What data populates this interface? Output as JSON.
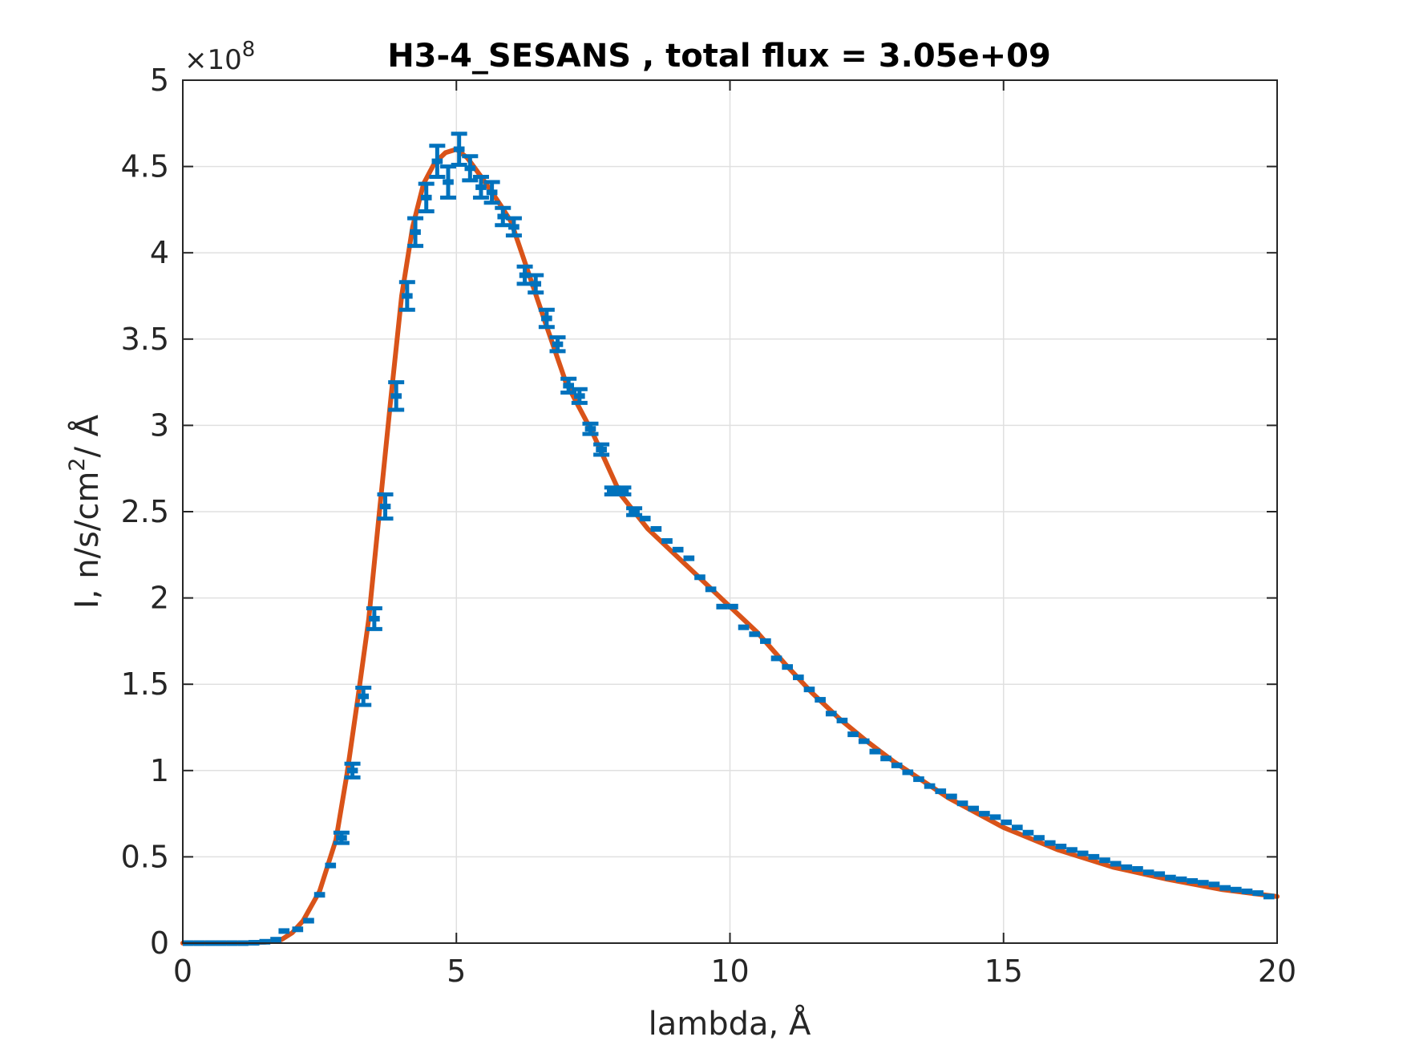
{
  "chart_data": {
    "type": "line",
    "title": "H3-4_SESANS , total flux =  3.05e+09",
    "xlabel": "lambda,  Å",
    "ylabel": {
      "prefix": "I, n/s/cm",
      "sup": "2",
      "suffix": "/ Å"
    },
    "y_exponent": {
      "base": "×10",
      "power": "8"
    },
    "xlim": [
      0,
      20
    ],
    "ylim": [
      0,
      500000000
    ],
    "y_display_scale": 100000000,
    "grid": true,
    "xticks": [
      0,
      5,
      10,
      15,
      20
    ],
    "xtick_labels": [
      "0",
      "5",
      "10",
      "15",
      "20"
    ],
    "yticks": [
      0,
      0.5,
      1,
      1.5,
      2,
      2.5,
      3,
      3.5,
      4,
      4.5,
      5
    ],
    "ytick_labels": [
      "0",
      "0.5",
      "1",
      "1.5",
      "2",
      "2.5",
      "3",
      "3.5",
      "4",
      "4.5",
      "5"
    ],
    "colors": {
      "fit_line": "#D95319",
      "data": "#0072BD",
      "grid": "#e0e0e0",
      "axes": "#262626"
    },
    "series": [
      {
        "style": "line",
        "x": [
          0,
          1.0,
          1.5,
          1.8,
          2.0,
          2.2,
          2.5,
          2.8,
          3.0,
          3.2,
          3.4,
          3.6,
          3.8,
          4.0,
          4.2,
          4.4,
          4.6,
          4.8,
          5.0,
          5.2,
          5.5,
          5.8,
          6.0,
          6.3,
          6.6,
          7.0,
          7.5,
          8.0,
          8.5,
          9.0,
          9.5,
          10.0,
          10.5,
          11.0,
          11.5,
          12.0,
          12.5,
          13.0,
          14.0,
          15.0,
          16.0,
          17.0,
          18.0,
          19.0,
          20.0
        ],
        "y": [
          0,
          0,
          500000,
          2000000,
          6000000,
          13000000,
          30000000,
          60000000,
          98000000,
          142000000,
          188000000,
          252000000,
          315000000,
          375000000,
          415000000,
          440000000,
          452000000,
          458000000,
          460000000,
          455000000,
          442000000,
          428000000,
          418000000,
          390000000,
          362000000,
          325000000,
          295000000,
          260000000,
          240000000,
          225000000,
          210000000,
          195000000,
          180000000,
          162000000,
          145000000,
          130000000,
          117000000,
          105000000,
          84000000,
          67000000,
          54000000,
          44000000,
          37000000,
          31000000,
          27000000
        ]
      },
      {
        "style": "errorbar",
        "x": [
          0.1,
          0.3,
          0.5,
          0.7,
          0.9,
          1.1,
          1.3,
          1.5,
          1.7,
          1.85,
          2.1,
          2.3,
          2.5,
          2.7,
          2.9,
          3.1,
          3.3,
          3.5,
          3.7,
          3.9,
          4.1,
          4.25,
          4.45,
          4.65,
          4.85,
          5.05,
          5.25,
          5.45,
          5.65,
          5.85,
          6.05,
          6.25,
          6.45,
          6.65,
          6.85,
          7.05,
          7.25,
          7.45,
          7.65,
          7.85,
          8.05,
          8.25,
          8.45,
          8.65,
          8.85,
          9.05,
          9.25,
          9.45,
          9.65,
          9.85,
          10.05,
          10.25,
          10.45,
          10.65,
          10.85,
          11.05,
          11.25,
          11.45,
          11.65,
          11.85,
          12.05,
          12.25,
          12.45,
          12.65,
          12.85,
          13.05,
          13.25,
          13.45,
          13.65,
          13.85,
          14.05,
          14.25,
          14.45,
          14.65,
          14.85,
          15.05,
          15.25,
          15.45,
          15.65,
          15.85,
          16.05,
          16.25,
          16.45,
          16.65,
          16.85,
          17.05,
          17.25,
          17.45,
          17.65,
          17.85,
          18.05,
          18.25,
          18.45,
          18.65,
          18.85,
          19.05,
          19.25,
          19.45,
          19.65,
          19.85
        ],
        "y": [
          0,
          0,
          0,
          0,
          0,
          0,
          200000,
          800000,
          2000000,
          7000000,
          8000000,
          13000000,
          28000000,
          45000000,
          61000000,
          100000000,
          143000000,
          188000000,
          253000000,
          317000000,
          375000000,
          412000000,
          432000000,
          453000000,
          441000000,
          460000000,
          449000000,
          438000000,
          435000000,
          421000000,
          415000000,
          387000000,
          382000000,
          362000000,
          347000000,
          323000000,
          317000000,
          298000000,
          286000000,
          262000000,
          262000000,
          250000000,
          246000000,
          240000000,
          233000000,
          228000000,
          223000000,
          212000000,
          205000000,
          195000000,
          195000000,
          183000000,
          179000000,
          175000000,
          165000000,
          160000000,
          154000000,
          147000000,
          141000000,
          133000000,
          129000000,
          121000000,
          117000000,
          111000000,
          107000000,
          103000000,
          99000000,
          95000000,
          91000000,
          88000000,
          85000000,
          81000000,
          78000000,
          75000000,
          73000000,
          70000000,
          67000000,
          64000000,
          61000000,
          58000000,
          56000000,
          54000000,
          52000000,
          50000000,
          48000000,
          46000000,
          44000000,
          43000000,
          41000000,
          40000000,
          38000000,
          37000000,
          36000000,
          35000000,
          34000000,
          32000000,
          31000000,
          30000000,
          29000000,
          27000000
        ],
        "err": [
          0,
          0,
          0,
          0,
          0,
          0,
          0,
          0,
          0,
          0,
          0,
          0,
          0,
          0,
          3000000,
          4000000,
          5000000,
          6000000,
          7000000,
          8000000,
          8000000,
          8000000,
          8000000,
          9000000,
          9000000,
          9000000,
          7000000,
          6000000,
          6000000,
          5000000,
          5000000,
          5000000,
          5000000,
          5000000,
          4000000,
          4000000,
          4000000,
          3000000,
          3000000,
          2000000,
          2000000,
          2000000,
          0,
          0,
          0,
          0,
          0,
          0,
          0,
          0,
          0,
          0,
          0,
          0,
          0,
          0,
          0,
          0,
          0,
          0,
          0,
          0,
          0,
          0,
          0,
          0,
          0,
          0,
          0,
          0,
          0,
          0,
          0,
          0,
          0,
          0,
          0,
          0,
          0,
          0,
          0,
          0,
          0,
          0,
          0,
          0,
          0,
          0,
          0,
          0,
          0,
          0,
          0,
          0,
          0,
          0,
          0,
          0,
          0,
          0
        ]
      }
    ]
  }
}
